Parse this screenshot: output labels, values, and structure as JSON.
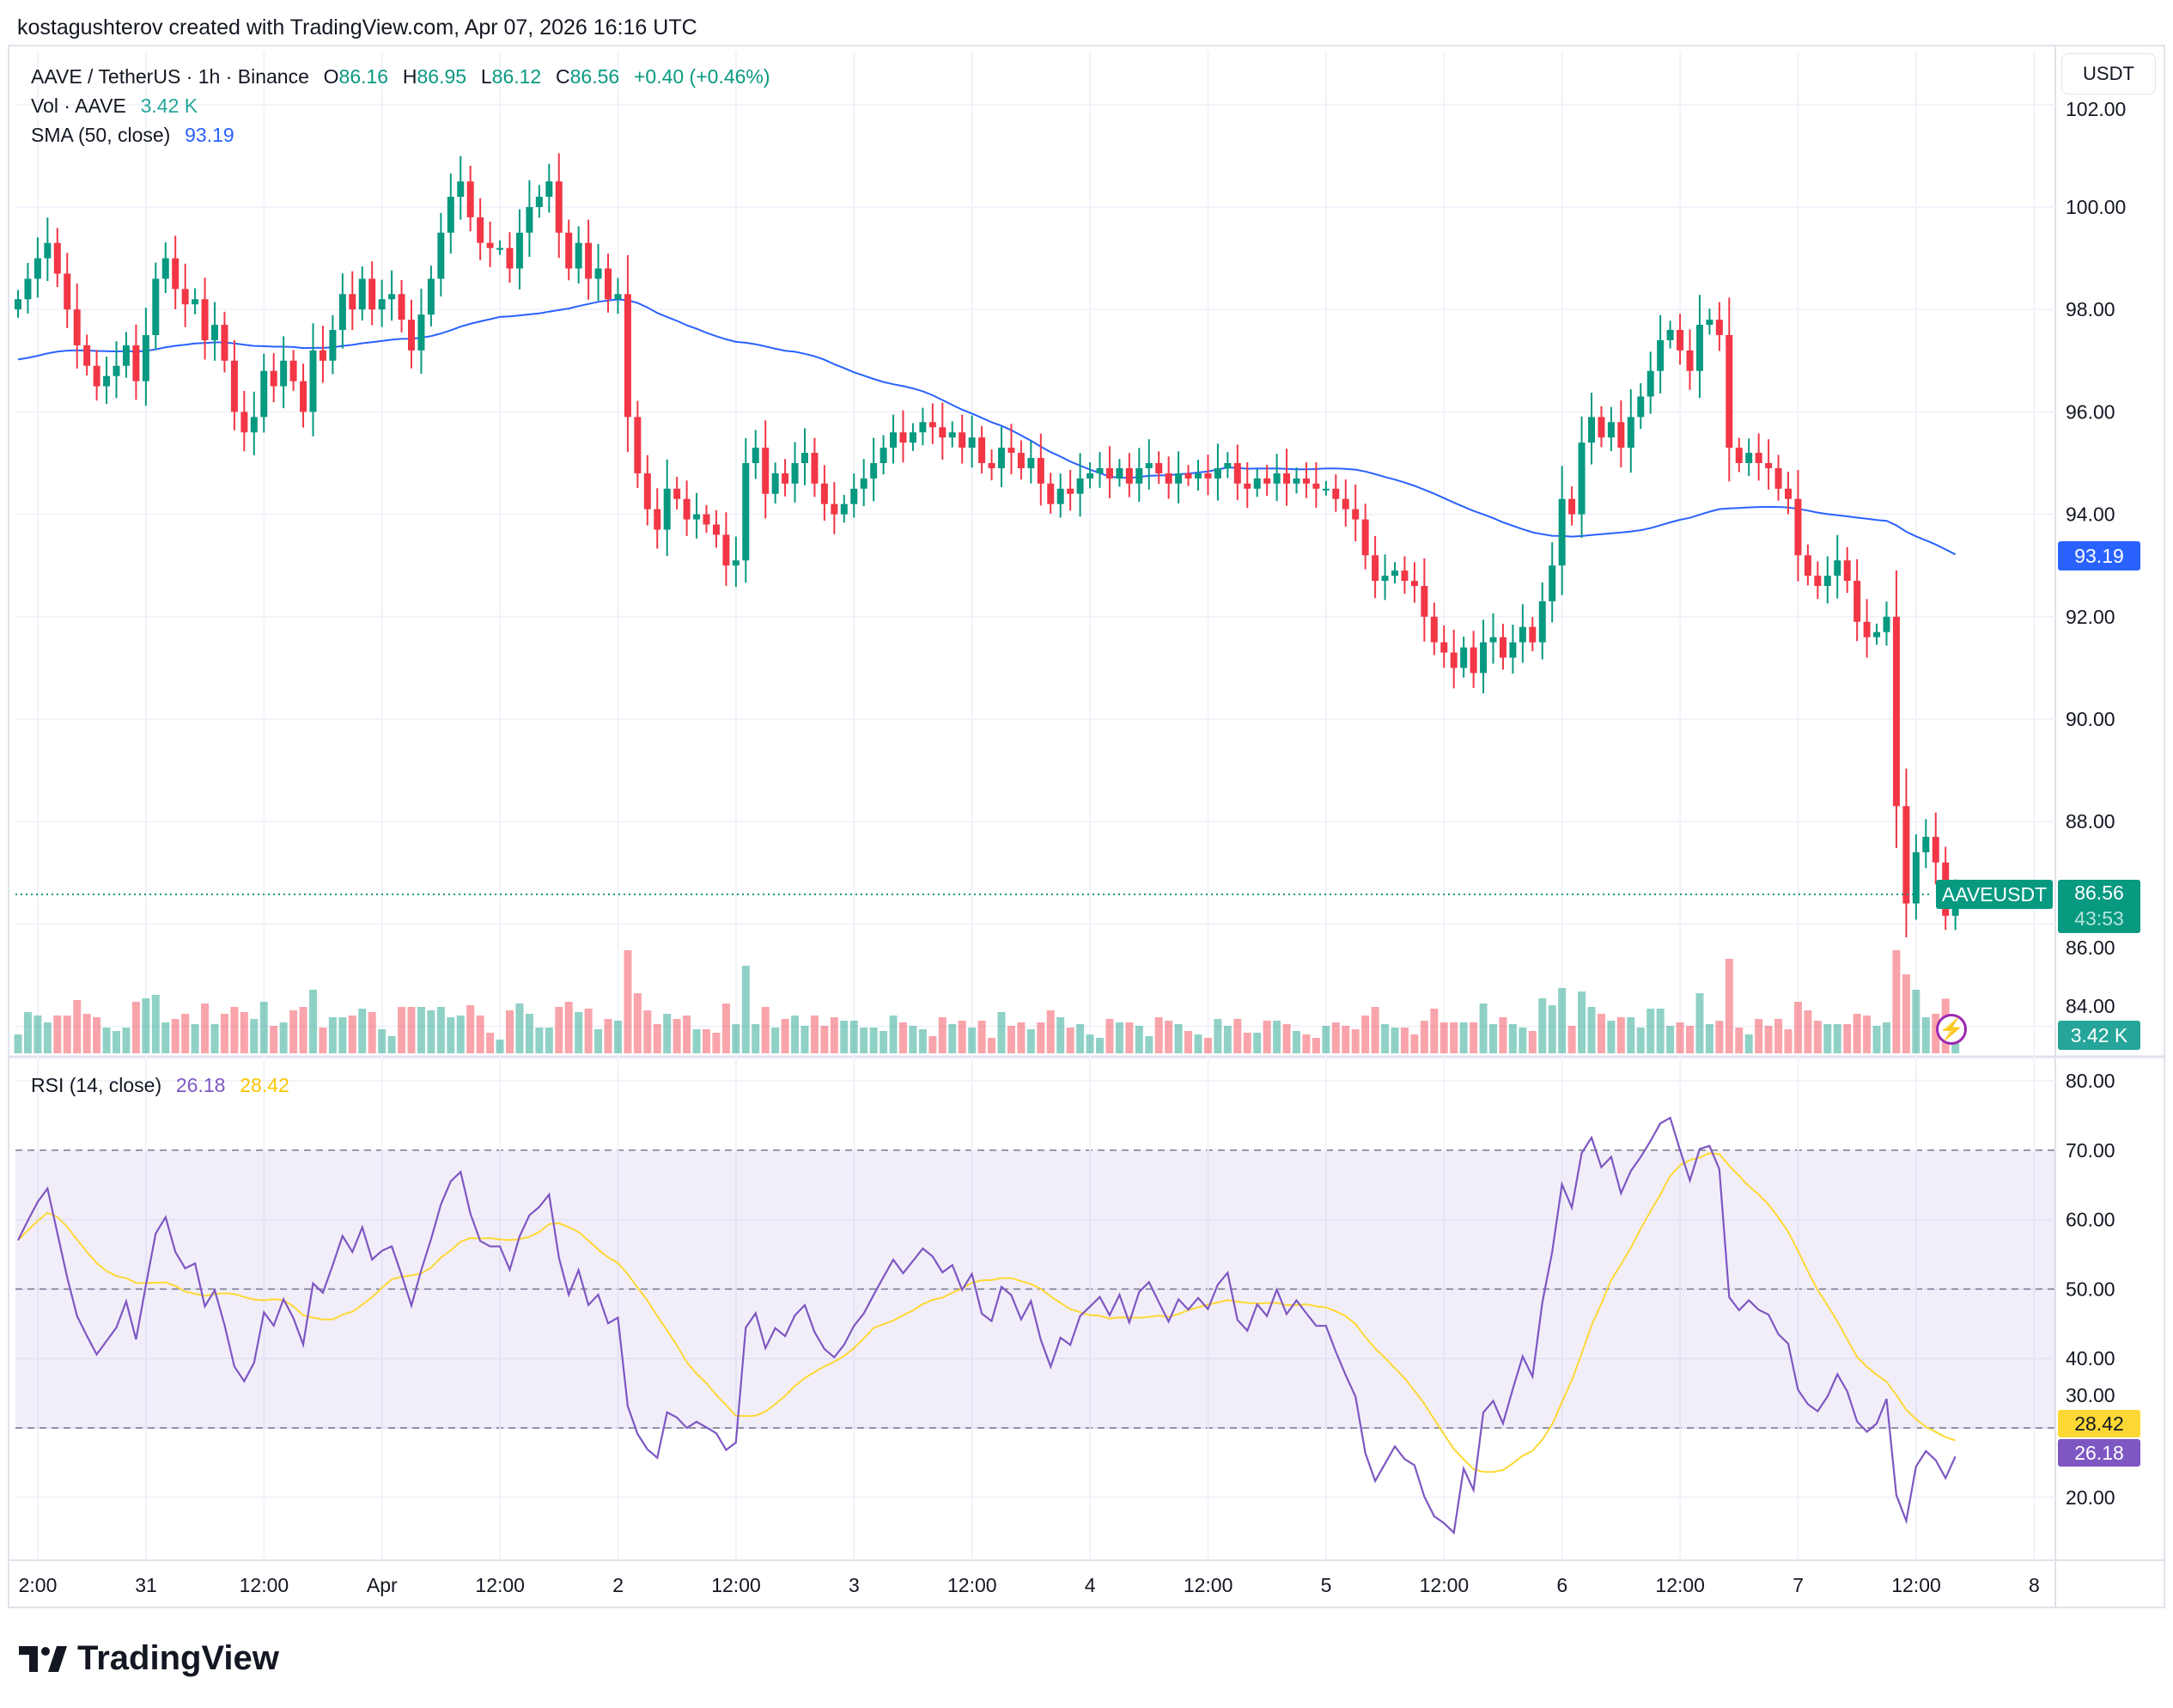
{
  "credit": "kostagushterov created with TradingView.com, Apr 07, 2026 16:16 UTC",
  "legend": {
    "symbol": "AAVE / TetherUS · 1h · Binance",
    "o_label": "O",
    "o": "86.16",
    "h_label": "H",
    "h": "86.95",
    "l_label": "L",
    "l": "86.12",
    "c_label": "C",
    "c": "86.56",
    "change": "+0.40 (+0.46%)",
    "vol_label": "Vol · AAVE",
    "vol": "3.42 K",
    "sma_label": "SMA (50, close)",
    "sma": "93.19",
    "rsi_label": "RSI (14, close)",
    "rsi": "26.18",
    "rsi_ma": "28.42"
  },
  "currency_button": "USDT",
  "badges": {
    "sma": "93.19",
    "symbol": "AAVEUSDT",
    "price": "86.56",
    "countdown": "43:53",
    "volume": "3.42 K",
    "rsi_ma": "28.42",
    "rsi": "26.18"
  },
  "colors": {
    "up": "#089981",
    "down": "#f23645",
    "sma": "#2962ff",
    "rsi": "#7e57c2",
    "rsi_ma": "#fdd835",
    "volume_badge": "#26a69a"
  },
  "logo": "TradingView",
  "chart_data": [
    {
      "type": "candlestick",
      "symbol": "AAVEUSDT",
      "interval": "1h",
      "start": "Mar 30 11:00",
      "end": "Apr 7 16:00",
      "y_ticks": [
        "102.00",
        "100.00",
        "98.00",
        "96.00",
        "94.00",
        "92.00",
        "90.00",
        "88.00",
        "86.00",
        "84.00"
      ],
      "ylim": [
        84,
        102
      ],
      "x_ticks": [
        "2:00",
        "31",
        "12:00",
        "Apr",
        "12:00",
        "2",
        "12:00",
        "3",
        "12:00",
        "4",
        "12:00",
        "5",
        "12:00",
        "6",
        "12:00",
        "7",
        "12:00",
        "8"
      ],
      "first_open": 98.0,
      "closes": [
        98.2,
        98.6,
        99.0,
        99.3,
        98.7,
        98.0,
        97.3,
        96.9,
        96.5,
        96.7,
        96.9,
        97.3,
        96.6,
        97.5,
        98.6,
        99.0,
        98.4,
        98.1,
        98.2,
        97.4,
        97.7,
        97.0,
        96.0,
        95.6,
        95.9,
        96.8,
        96.5,
        97.0,
        96.6,
        96.0,
        97.2,
        97.0,
        97.6,
        98.3,
        98.0,
        98.6,
        98.0,
        98.2,
        98.3,
        97.8,
        97.2,
        97.9,
        98.6,
        99.5,
        100.2,
        100.5,
        99.8,
        99.3,
        99.2,
        99.2,
        98.8,
        99.5,
        100.0,
        100.2,
        100.5,
        99.5,
        98.8,
        99.3,
        98.6,
        98.8,
        98.2,
        98.3,
        95.9,
        94.8,
        94.1,
        93.7,
        94.5,
        94.3,
        93.9,
        94.0,
        93.8,
        93.6,
        93.0,
        93.1,
        95.0,
        95.3,
        94.4,
        94.8,
        94.6,
        95.0,
        95.2,
        94.6,
        94.2,
        94.0,
        94.2,
        94.5,
        94.7,
        95.0,
        95.3,
        95.6,
        95.4,
        95.6,
        95.8,
        95.7,
        95.5,
        95.6,
        95.3,
        95.5,
        95.0,
        94.9,
        95.3,
        95.2,
        94.9,
        95.1,
        94.6,
        94.2,
        94.5,
        94.4,
        94.7,
        94.8,
        94.9,
        94.7,
        94.9,
        94.6,
        94.9,
        95.0,
        94.8,
        94.6,
        94.8,
        94.7,
        94.8,
        94.7,
        94.9,
        95.0,
        94.6,
        94.5,
        94.7,
        94.6,
        94.8,
        94.6,
        94.7,
        94.6,
        94.5,
        94.5,
        94.3,
        94.1,
        93.9,
        93.2,
        92.7,
        92.8,
        92.9,
        92.7,
        92.6,
        92.0,
        91.5,
        91.3,
        91.0,
        91.4,
        90.9,
        91.5,
        91.6,
        91.2,
        91.5,
        91.8,
        91.5,
        92.3,
        93.0,
        94.3,
        94.0,
        95.4,
        95.9,
        95.5,
        95.8,
        95.3,
        95.9,
        96.3,
        96.8,
        97.4,
        97.6,
        97.2,
        96.8,
        97.7,
        97.8,
        97.5,
        95.3,
        95.0,
        95.2,
        95.0,
        94.9,
        94.5,
        94.3,
        93.2,
        92.8,
        92.6,
        92.8,
        93.1,
        92.7,
        91.9,
        91.6,
        91.7,
        92.0,
        88.3,
        86.4,
        87.4,
        87.7,
        87.2,
        86.16,
        86.56
      ],
      "series": [
        {
          "name": "SMA (50, close)",
          "last": 93.19
        },
        {
          "name": "Vol · AAVE",
          "last": "3.42 K"
        }
      ]
    },
    {
      "type": "line",
      "title": "RSI (14, close)",
      "y_ticks": [
        "80.00",
        "70.00",
        "60.00",
        "50.00",
        "40.00",
        "30.00",
        "20.00"
      ],
      "ylim": [
        15,
        82
      ],
      "bands": [
        30,
        50,
        70
      ],
      "series": [
        {
          "name": "RSI",
          "last": 26.18
        },
        {
          "name": "RSI-based MA",
          "last": 28.42
        }
      ]
    }
  ]
}
